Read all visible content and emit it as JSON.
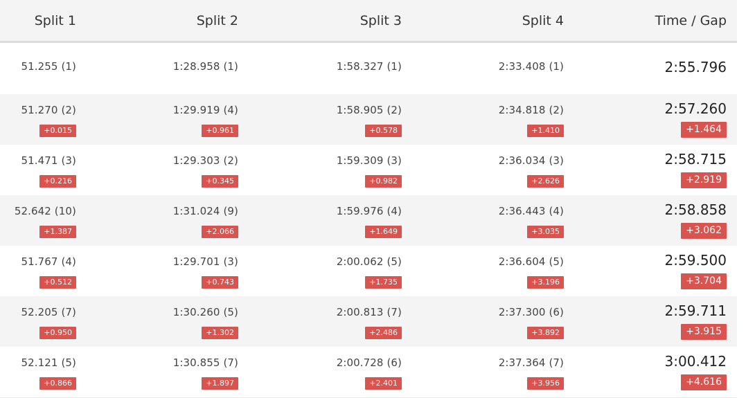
{
  "columns": [
    "Split 1",
    "Split 2",
    "Split 3",
    "Split 4",
    "Time / Gap"
  ],
  "rows": [
    {
      "splits": [
        {
          "value": "51.255 (1)",
          "gap": ""
        },
        {
          "value": "1:28.958 (1)",
          "gap": ""
        },
        {
          "value": "1:58.327 (1)",
          "gap": ""
        },
        {
          "value": "2:33.408 (1)",
          "gap": ""
        }
      ],
      "time": "2:55.796",
      "time_gap": ""
    },
    {
      "splits": [
        {
          "value": "51.270 (2)",
          "gap": "+0.015"
        },
        {
          "value": "1:29.919 (4)",
          "gap": "+0.961"
        },
        {
          "value": "1:58.905 (2)",
          "gap": "+0.578"
        },
        {
          "value": "2:34.818 (2)",
          "gap": "+1.410"
        }
      ],
      "time": "2:57.260",
      "time_gap": "+1.464"
    },
    {
      "splits": [
        {
          "value": "51.471 (3)",
          "gap": "+0.216"
        },
        {
          "value": "1:29.303 (2)",
          "gap": "+0.345"
        },
        {
          "value": "1:59.309 (3)",
          "gap": "+0.982"
        },
        {
          "value": "2:36.034 (3)",
          "gap": "+2.626"
        }
      ],
      "time": "2:58.715",
      "time_gap": "+2.919"
    },
    {
      "splits": [
        {
          "value": "52.642 (10)",
          "gap": "+1.387"
        },
        {
          "value": "1:31.024 (9)",
          "gap": "+2.066"
        },
        {
          "value": "1:59.976 (4)",
          "gap": "+1.649"
        },
        {
          "value": "2:36.443 (4)",
          "gap": "+3.035"
        }
      ],
      "time": "2:58.858",
      "time_gap": "+3.062"
    },
    {
      "splits": [
        {
          "value": "51.767 (4)",
          "gap": "+0.512"
        },
        {
          "value": "1:29.701 (3)",
          "gap": "+0.743"
        },
        {
          "value": "2:00.062 (5)",
          "gap": "+1.735"
        },
        {
          "value": "2:36.604 (5)",
          "gap": "+3.196"
        }
      ],
      "time": "2:59.500",
      "time_gap": "+3.704"
    },
    {
      "splits": [
        {
          "value": "52.205 (7)",
          "gap": "+0.950"
        },
        {
          "value": "1:30.260 (5)",
          "gap": "+1.302"
        },
        {
          "value": "2:00.813 (7)",
          "gap": "+2.486"
        },
        {
          "value": "2:37.300 (6)",
          "gap": "+3.892"
        }
      ],
      "time": "2:59.711",
      "time_gap": "+3.915"
    },
    {
      "splits": [
        {
          "value": "52.121 (5)",
          "gap": "+0.866"
        },
        {
          "value": "1:30.855 (7)",
          "gap": "+1.897"
        },
        {
          "value": "2:00.728 (6)",
          "gap": "+2.401"
        },
        {
          "value": "2:37.364 (7)",
          "gap": "+3.956"
        }
      ],
      "time": "3:00.412",
      "time_gap": "+4.616"
    }
  ],
  "colors": {
    "gap_badge": "#d9534f",
    "stripe": "#f4f4f4"
  }
}
